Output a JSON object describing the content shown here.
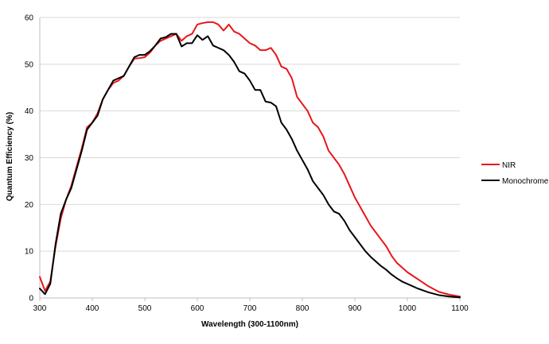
{
  "chart_data": {
    "type": "line",
    "title": "",
    "xlabel": "Wavelength (300-1100nm)",
    "ylabel": "Quantum Efficiency (%)",
    "xlim": [
      300,
      1100
    ],
    "ylim": [
      0,
      60
    ],
    "xticks": [
      300,
      400,
      500,
      600,
      700,
      800,
      900,
      1000,
      1100
    ],
    "yticks": [
      0,
      10,
      20,
      30,
      40,
      50,
      60
    ],
    "grid": "horizontal",
    "legend_position": "right",
    "series": [
      {
        "name": "NIR",
        "color": "#e8161b",
        "points": [
          [
            300,
            4.5
          ],
          [
            310,
            1.5
          ],
          [
            320,
            3.5
          ],
          [
            330,
            11
          ],
          [
            340,
            17
          ],
          [
            350,
            21
          ],
          [
            360,
            24
          ],
          [
            370,
            28
          ],
          [
            380,
            32
          ],
          [
            390,
            36.5
          ],
          [
            400,
            37.5
          ],
          [
            410,
            39.5
          ],
          [
            420,
            42.5
          ],
          [
            430,
            44.5
          ],
          [
            440,
            46
          ],
          [
            450,
            46.5
          ],
          [
            460,
            47.5
          ],
          [
            470,
            49.5
          ],
          [
            480,
            51.2
          ],
          [
            490,
            51.3
          ],
          [
            500,
            51.5
          ],
          [
            510,
            52.5
          ],
          [
            520,
            54
          ],
          [
            530,
            55
          ],
          [
            540,
            55.5
          ],
          [
            550,
            56
          ],
          [
            560,
            56.5
          ],
          [
            570,
            55
          ],
          [
            580,
            56
          ],
          [
            590,
            56.5
          ],
          [
            600,
            58.5
          ],
          [
            610,
            58.8
          ],
          [
            620,
            59
          ],
          [
            630,
            59
          ],
          [
            640,
            58.5
          ],
          [
            650,
            57.2
          ],
          [
            660,
            58.5
          ],
          [
            670,
            57
          ],
          [
            680,
            56.5
          ],
          [
            690,
            55.5
          ],
          [
            700,
            54.5
          ],
          [
            710,
            54
          ],
          [
            720,
            53
          ],
          [
            730,
            53
          ],
          [
            740,
            53.5
          ],
          [
            750,
            52
          ],
          [
            760,
            49.5
          ],
          [
            770,
            49
          ],
          [
            780,
            47
          ],
          [
            790,
            43
          ],
          [
            800,
            41.5
          ],
          [
            810,
            40
          ],
          [
            820,
            37.5
          ],
          [
            830,
            36.5
          ],
          [
            840,
            34.5
          ],
          [
            850,
            31.5
          ],
          [
            860,
            30
          ],
          [
            870,
            28.5
          ],
          [
            880,
            26.5
          ],
          [
            890,
            24
          ],
          [
            900,
            21.5
          ],
          [
            910,
            19.5
          ],
          [
            920,
            17.5
          ],
          [
            930,
            15.5
          ],
          [
            940,
            14
          ],
          [
            950,
            12.5
          ],
          [
            960,
            11
          ],
          [
            970,
            9
          ],
          [
            980,
            7.5
          ],
          [
            990,
            6.5
          ],
          [
            1000,
            5.5
          ],
          [
            1020,
            4
          ],
          [
            1040,
            2.5
          ],
          [
            1060,
            1.3
          ],
          [
            1080,
            0.7
          ],
          [
            1100,
            0.3
          ]
        ]
      },
      {
        "name": "Monochrome",
        "color": "#000000",
        "points": [
          [
            300,
            2
          ],
          [
            310,
            0.8
          ],
          [
            320,
            3
          ],
          [
            330,
            11.5
          ],
          [
            340,
            18
          ],
          [
            350,
            21
          ],
          [
            360,
            23.5
          ],
          [
            370,
            27.5
          ],
          [
            380,
            31.5
          ],
          [
            390,
            36
          ],
          [
            400,
            37.5
          ],
          [
            410,
            39
          ],
          [
            420,
            42.5
          ],
          [
            430,
            44.5
          ],
          [
            440,
            46.5
          ],
          [
            450,
            47
          ],
          [
            460,
            47.5
          ],
          [
            470,
            49.5
          ],
          [
            480,
            51.5
          ],
          [
            490,
            52
          ],
          [
            500,
            52
          ],
          [
            510,
            52.8
          ],
          [
            520,
            54
          ],
          [
            530,
            55.5
          ],
          [
            540,
            55.8
          ],
          [
            550,
            56.5
          ],
          [
            560,
            56.5
          ],
          [
            570,
            53.8
          ],
          [
            580,
            54.5
          ],
          [
            590,
            54.5
          ],
          [
            600,
            56.2
          ],
          [
            610,
            55.2
          ],
          [
            620,
            56
          ],
          [
            630,
            54
          ],
          [
            640,
            53.5
          ],
          [
            650,
            53
          ],
          [
            660,
            52
          ],
          [
            670,
            50.5
          ],
          [
            680,
            48.5
          ],
          [
            690,
            48
          ],
          [
            700,
            46.5
          ],
          [
            710,
            44.5
          ],
          [
            720,
            44.5
          ],
          [
            730,
            42
          ],
          [
            740,
            41.8
          ],
          [
            750,
            41
          ],
          [
            760,
            37.5
          ],
          [
            770,
            36
          ],
          [
            780,
            34
          ],
          [
            790,
            31.5
          ],
          [
            800,
            29.5
          ],
          [
            810,
            27.5
          ],
          [
            820,
            25
          ],
          [
            830,
            23.5
          ],
          [
            840,
            22
          ],
          [
            850,
            20
          ],
          [
            860,
            18.5
          ],
          [
            870,
            18
          ],
          [
            880,
            16.5
          ],
          [
            890,
            14.5
          ],
          [
            900,
            13
          ],
          [
            910,
            11.5
          ],
          [
            920,
            10
          ],
          [
            930,
            8.8
          ],
          [
            940,
            7.8
          ],
          [
            950,
            6.8
          ],
          [
            960,
            6
          ],
          [
            970,
            5
          ],
          [
            980,
            4.2
          ],
          [
            990,
            3.5
          ],
          [
            1000,
            3
          ],
          [
            1020,
            2
          ],
          [
            1040,
            1.2
          ],
          [
            1060,
            0.6
          ],
          [
            1080,
            0.3
          ],
          [
            1100,
            0.1
          ]
        ]
      }
    ]
  }
}
